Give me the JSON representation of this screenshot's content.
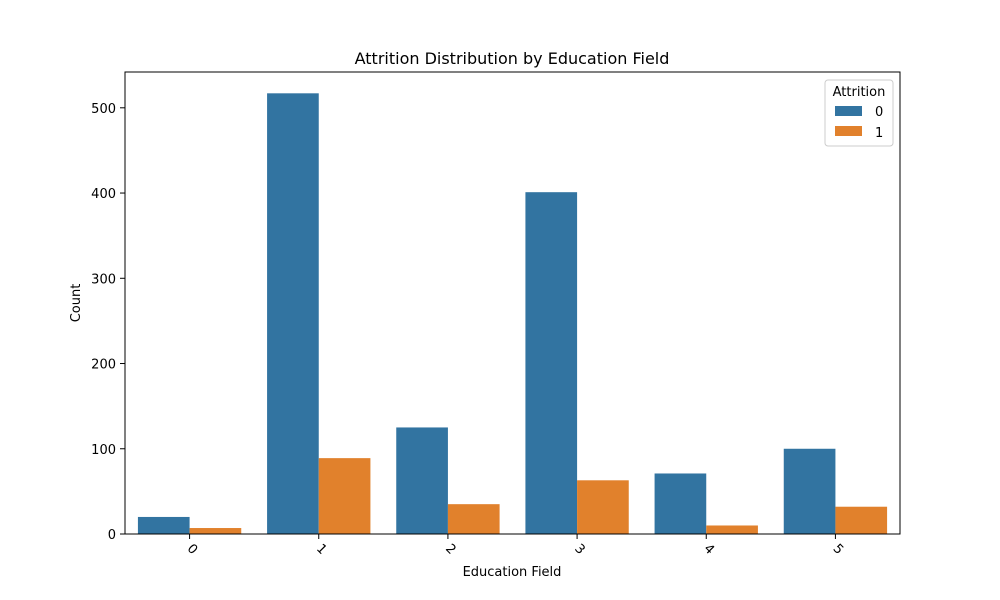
{
  "chart_data": {
    "type": "bar",
    "title": "Attrition Distribution by Education Field",
    "xlabel": "Education Field",
    "ylabel": "Count",
    "categories": [
      "0",
      "1",
      "2",
      "3",
      "4",
      "5"
    ],
    "ylim": [
      0,
      542
    ],
    "yticks": [
      0,
      100,
      200,
      300,
      400,
      500
    ],
    "grid": false,
    "legend": {
      "title": "Attrition",
      "placement": "top-right"
    },
    "series": [
      {
        "name": "0",
        "color": "#3274a1",
        "values": [
          20,
          517,
          125,
          401,
          71,
          100
        ]
      },
      {
        "name": "1",
        "color": "#e1812c",
        "values": [
          7,
          89,
          35,
          63,
          10,
          32
        ]
      }
    ]
  }
}
